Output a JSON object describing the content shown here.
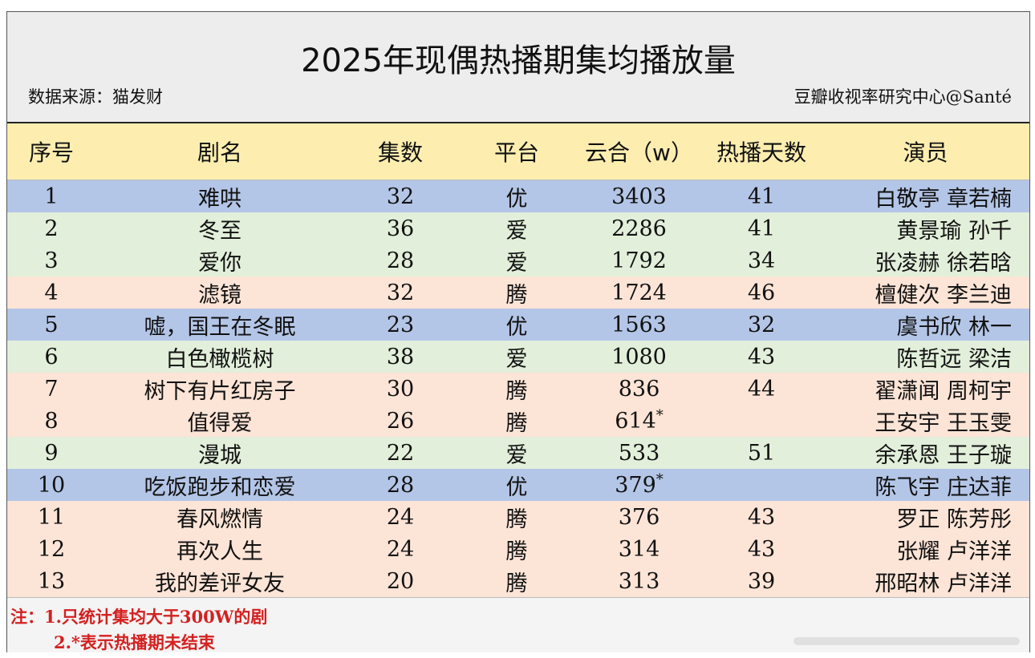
{
  "chart_data": {
    "type": "table",
    "title": "2025年现偶热播期集均播放量",
    "source": "数据来源：猫发财",
    "credit": "豆瓣收视率研究中心@Santé",
    "columns": [
      "序号",
      "剧名",
      "集数",
      "平台",
      "云合（w）",
      "热播天数",
      "演员"
    ],
    "rows": [
      {
        "no": "1",
        "name": "难哄",
        "eps": "32",
        "platform": "优",
        "views": "3403",
        "star": "",
        "days": "41",
        "cast": "白敬亭 章若楠",
        "color": "#b4c6e7"
      },
      {
        "no": "2",
        "name": "冬至",
        "eps": "36",
        "platform": "爱",
        "views": "2286",
        "star": "",
        "days": "41",
        "cast": "黄景瑜 孙千",
        "color": "#e2efda"
      },
      {
        "no": "3",
        "name": "爱你",
        "eps": "28",
        "platform": "爱",
        "views": "1792",
        "star": "",
        "days": "34",
        "cast": "张凌赫 徐若晗",
        "color": "#e2efda"
      },
      {
        "no": "4",
        "name": "滤镜",
        "eps": "32",
        "platform": "腾",
        "views": "1724",
        "star": "",
        "days": "46",
        "cast": "檀健次 李兰迪",
        "color": "#fce4d6"
      },
      {
        "no": "5",
        "name": "嘘，国王在冬眠",
        "eps": "23",
        "platform": "优",
        "views": "1563",
        "star": "",
        "days": "32",
        "cast": "虞书欣 林一",
        "color": "#b4c6e7"
      },
      {
        "no": "6",
        "name": "白色橄榄树",
        "eps": "38",
        "platform": "爱",
        "views": "1080",
        "star": "",
        "days": "43",
        "cast": "陈哲远 梁洁",
        "color": "#e2efda"
      },
      {
        "no": "7",
        "name": "树下有片红房子",
        "eps": "30",
        "platform": "腾",
        "views": "836",
        "star": "",
        "days": "44",
        "cast": "翟潇闻 周柯宇",
        "color": "#fce4d6"
      },
      {
        "no": "8",
        "name": "值得爱",
        "eps": "26",
        "platform": "腾",
        "views": "614",
        "star": "*",
        "days": "",
        "cast": "王安宇 王玉雯",
        "color": "#fce4d6"
      },
      {
        "no": "9",
        "name": "漫城",
        "eps": "22",
        "platform": "爱",
        "views": "533",
        "star": "",
        "days": "51",
        "cast": "余承恩 王子璇",
        "color": "#e2efda"
      },
      {
        "no": "10",
        "name": "吃饭跑步和恋爱",
        "eps": "28",
        "platform": "优",
        "views": "379",
        "star": "*",
        "days": "",
        "cast": "陈飞宇 庄达菲",
        "color": "#b4c6e7"
      },
      {
        "no": "11",
        "name": "春风燃情",
        "eps": "24",
        "platform": "腾",
        "views": "376",
        "star": "",
        "days": "43",
        "cast": "罗正 陈芳彤",
        "color": "#fce4d6"
      },
      {
        "no": "12",
        "name": "再次人生",
        "eps": "24",
        "platform": "腾",
        "views": "314",
        "star": "",
        "days": "43",
        "cast": "张耀 卢洋洋",
        "color": "#fce4d6"
      },
      {
        "no": "13",
        "name": "我的差评女友",
        "eps": "20",
        "platform": "腾",
        "views": "313",
        "star": "",
        "days": "39",
        "cast": "邢昭林 卢洋洋",
        "color": "#fce4d6"
      }
    ],
    "notes": [
      "注：1.只统计集均大于300W的剧",
      "2.*表示热播期未结束"
    ]
  }
}
